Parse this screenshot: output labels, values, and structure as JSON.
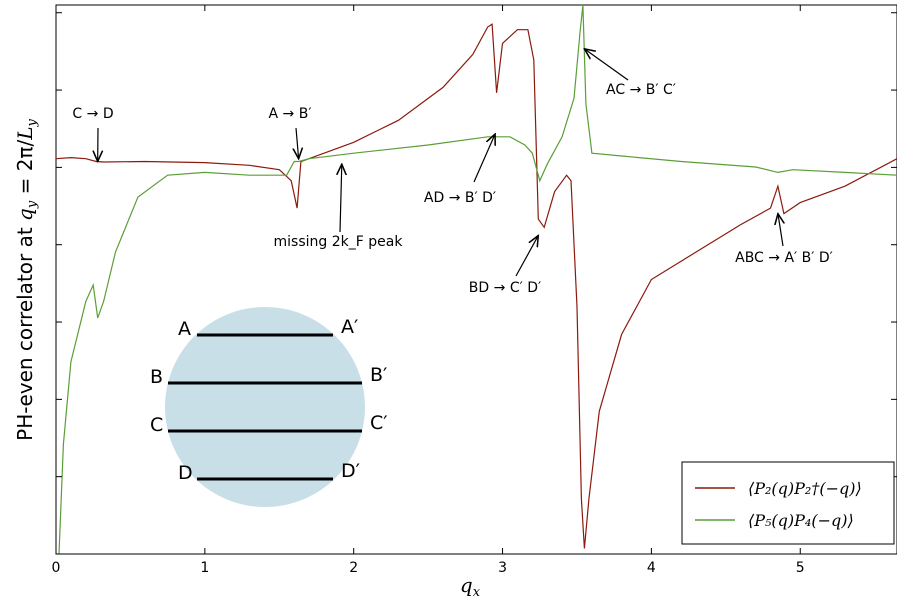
{
  "chart_data": {
    "type": "line",
    "xlabel": "q_x",
    "ylabel": "PH-even correlator at q_y = 2π/L_y",
    "xlim": [
      0,
      5.65
    ],
    "ylim": [
      0,
      1
    ],
    "x_ticks": [
      "0",
      "1",
      "2",
      "3",
      "4",
      "5"
    ],
    "grid": false,
    "legend_position": "bottom-right",
    "series": [
      {
        "name": "⟨P₂(q)P₂†(−q)⟩",
        "color": "#8b1a0e",
        "points": [
          [
            0.0,
            0.72
          ],
          [
            0.1,
            0.722
          ],
          [
            0.2,
            0.72
          ],
          [
            0.27,
            0.715
          ],
          [
            0.32,
            0.714
          ],
          [
            0.6,
            0.715
          ],
          [
            1.0,
            0.713
          ],
          [
            1.3,
            0.708
          ],
          [
            1.5,
            0.7
          ],
          [
            1.58,
            0.68
          ],
          [
            1.62,
            0.63
          ],
          [
            1.645,
            0.715
          ],
          [
            1.7,
            0.72
          ],
          [
            2.0,
            0.75
          ],
          [
            2.3,
            0.79
          ],
          [
            2.6,
            0.85
          ],
          [
            2.8,
            0.91
          ],
          [
            2.9,
            0.96
          ],
          [
            2.93,
            0.965
          ],
          [
            2.96,
            0.84
          ],
          [
            3.0,
            0.93
          ],
          [
            3.1,
            0.955
          ],
          [
            3.17,
            0.955
          ],
          [
            3.21,
            0.9
          ],
          [
            3.24,
            0.61
          ],
          [
            3.28,
            0.595
          ],
          [
            3.35,
            0.66
          ],
          [
            3.43,
            0.69
          ],
          [
            3.46,
            0.68
          ],
          [
            3.5,
            0.45
          ],
          [
            3.53,
            0.1
          ],
          [
            3.55,
            0.01
          ],
          [
            3.58,
            0.1
          ],
          [
            3.65,
            0.26
          ],
          [
            3.8,
            0.4
          ],
          [
            4.0,
            0.5
          ],
          [
            4.3,
            0.55
          ],
          [
            4.6,
            0.6
          ],
          [
            4.8,
            0.63
          ],
          [
            4.85,
            0.67
          ],
          [
            4.89,
            0.62
          ],
          [
            5.0,
            0.64
          ],
          [
            5.3,
            0.67
          ],
          [
            5.65,
            0.72
          ]
        ]
      },
      {
        "name": "⟨P₅(q)P₄(−q)⟩",
        "color": "#5a9e38",
        "points": [
          [
            0.02,
            0.0
          ],
          [
            0.05,
            0.2
          ],
          [
            0.1,
            0.35
          ],
          [
            0.2,
            0.46
          ],
          [
            0.25,
            0.49
          ],
          [
            0.28,
            0.43
          ],
          [
            0.32,
            0.46
          ],
          [
            0.4,
            0.55
          ],
          [
            0.55,
            0.65
          ],
          [
            0.75,
            0.69
          ],
          [
            1.0,
            0.695
          ],
          [
            1.3,
            0.69
          ],
          [
            1.55,
            0.69
          ],
          [
            1.6,
            0.715
          ],
          [
            1.63,
            0.715
          ],
          [
            1.7,
            0.72
          ],
          [
            2.0,
            0.73
          ],
          [
            2.5,
            0.745
          ],
          [
            2.9,
            0.76
          ],
          [
            3.05,
            0.76
          ],
          [
            3.15,
            0.745
          ],
          [
            3.2,
            0.73
          ],
          [
            3.25,
            0.68
          ],
          [
            3.3,
            0.71
          ],
          [
            3.4,
            0.76
          ],
          [
            3.48,
            0.83
          ],
          [
            3.52,
            0.95
          ],
          [
            3.54,
            1.0
          ],
          [
            3.56,
            0.82
          ],
          [
            3.6,
            0.73
          ],
          [
            3.8,
            0.725
          ],
          [
            4.2,
            0.715
          ],
          [
            4.7,
            0.705
          ],
          [
            4.85,
            0.695
          ],
          [
            4.95,
            0.7
          ],
          [
            5.3,
            0.695
          ],
          [
            5.65,
            0.69
          ]
        ]
      }
    ],
    "annotations": [
      {
        "text": "C → D",
        "x": 0.28,
        "y": 0.715
      },
      {
        "text": "A → B′",
        "x": 1.63,
        "y": 0.72
      },
      {
        "text": "missing 2k_F peak",
        "x": 1.92,
        "y": 0.71
      },
      {
        "text": "AD → B′ D′",
        "x": 2.95,
        "y": 0.765
      },
      {
        "text": "BD → C′ D′",
        "x": 3.24,
        "y": 0.58
      },
      {
        "text": "AC → B′ C′",
        "x": 3.55,
        "y": 0.92
      },
      {
        "text": "ABC → A′ B′ D′",
        "x": 4.85,
        "y": 0.62
      }
    ],
    "inset": {
      "description_labels": {
        "A": "A",
        "A_prime": "A′",
        "B": "B",
        "B_prime": "B′",
        "C": "C",
        "C_prime": "C′",
        "D": "D",
        "D_prime": "D′"
      },
      "fill_color": "#c9dfe8"
    }
  }
}
